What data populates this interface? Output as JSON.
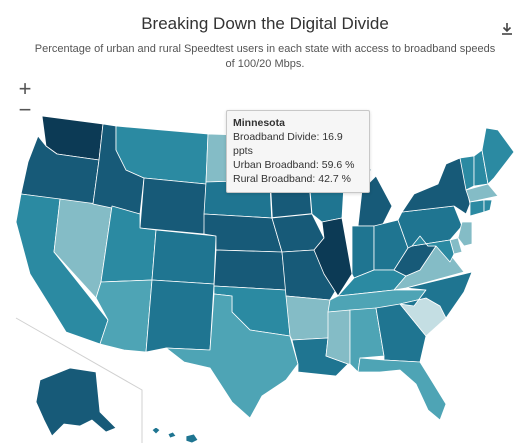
{
  "header": {
    "title": "Breaking Down the Digital Divide",
    "subtitle": "Percentage of urban and rural Speedtest users in each state with access to broadband speeds of 100/20 Mbps."
  },
  "controls": {
    "zoom_in": "+",
    "zoom_out": "−",
    "download_icon": "download-icon"
  },
  "tooltip": {
    "state": "Minnesota",
    "divide_label": "Broadband Divide:",
    "divide_value": "16.9 ppts",
    "urban_label": "Urban Broadband:",
    "urban_value": "59.6 %",
    "rural_label": "Rural Broadband:",
    "rural_value": "42.7 %"
  },
  "colors": {
    "darkest": "#0c3a55",
    "dark": "#175a78",
    "medium": "#1f7591",
    "teal": "#2b8aa2",
    "lightteal": "#4ea4b5",
    "light": "#84bcc6",
    "pale": "#c4dee3",
    "highlight_border": "#ffffff"
  },
  "states": [
    {
      "name": "Washington",
      "level": "darkest"
    },
    {
      "name": "Oregon",
      "level": "dark"
    },
    {
      "name": "California",
      "level": "teal"
    },
    {
      "name": "Nevada",
      "level": "light"
    },
    {
      "name": "Idaho",
      "level": "dark"
    },
    {
      "name": "Montana",
      "level": "teal"
    },
    {
      "name": "Wyoming",
      "level": "dark"
    },
    {
      "name": "Utah",
      "level": "teal"
    },
    {
      "name": "Arizona",
      "level": "lightteal"
    },
    {
      "name": "Colorado",
      "level": "medium"
    },
    {
      "name": "New Mexico",
      "level": "medium"
    },
    {
      "name": "North Dakota",
      "level": "light"
    },
    {
      "name": "South Dakota",
      "level": "medium"
    },
    {
      "name": "Nebraska",
      "level": "dark"
    },
    {
      "name": "Kansas",
      "level": "dark"
    },
    {
      "name": "Oklahoma",
      "level": "teal"
    },
    {
      "name": "Texas",
      "level": "lightteal"
    },
    {
      "name": "Minnesota",
      "level": "dark"
    },
    {
      "name": "Iowa",
      "level": "dark"
    },
    {
      "name": "Missouri",
      "level": "dark"
    },
    {
      "name": "Arkansas",
      "level": "light"
    },
    {
      "name": "Louisiana",
      "level": "medium"
    },
    {
      "name": "Wisconsin",
      "level": "medium"
    },
    {
      "name": "Illinois",
      "level": "darkest"
    },
    {
      "name": "Michigan",
      "level": "dark"
    },
    {
      "name": "Indiana",
      "level": "medium"
    },
    {
      "name": "Ohio",
      "level": "medium"
    },
    {
      "name": "Kentucky",
      "level": "teal"
    },
    {
      "name": "Tennessee",
      "level": "lightteal"
    },
    {
      "name": "Mississippi",
      "level": "light"
    },
    {
      "name": "Alabama",
      "level": "lightteal"
    },
    {
      "name": "Georgia",
      "level": "medium"
    },
    {
      "name": "Florida",
      "level": "lightteal"
    },
    {
      "name": "South Carolina",
      "level": "pale"
    },
    {
      "name": "North Carolina",
      "level": "medium"
    },
    {
      "name": "Virginia",
      "level": "light"
    },
    {
      "name": "West Virginia",
      "level": "dark"
    },
    {
      "name": "Pennsylvania",
      "level": "medium"
    },
    {
      "name": "New York",
      "level": "dark"
    },
    {
      "name": "Vermont",
      "level": "teal"
    },
    {
      "name": "New Hampshire",
      "level": "teal"
    },
    {
      "name": "Maine",
      "level": "teal"
    },
    {
      "name": "Massachusetts",
      "level": "light"
    },
    {
      "name": "Connecticut",
      "level": "teal"
    },
    {
      "name": "Rhode Island",
      "level": "teal"
    },
    {
      "name": "New Jersey",
      "level": "light"
    },
    {
      "name": "Delaware",
      "level": "light"
    },
    {
      "name": "Maryland",
      "level": "teal"
    },
    {
      "name": "Alaska",
      "level": "dark"
    },
    {
      "name": "Hawaii",
      "level": "medium"
    }
  ]
}
